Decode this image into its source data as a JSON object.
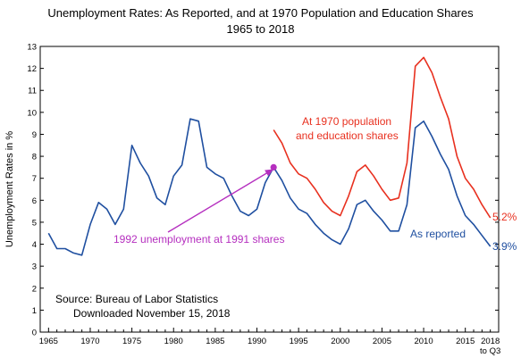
{
  "chart_data": {
    "type": "line",
    "title": "Unemployment Rates:  As Reported, and at 1970 Population and Education Shares",
    "subtitle": "1965 to 2018",
    "xlabel": "",
    "ylabel": "Unemployment Rates in %",
    "xlim": [
      1964,
      2019
    ],
    "ylim": [
      0,
      13
    ],
    "yticks": [
      0,
      1,
      2,
      3,
      4,
      5,
      6,
      7,
      8,
      9,
      10,
      11,
      12,
      13
    ],
    "xticks": [
      1965,
      1970,
      1975,
      1980,
      1985,
      1990,
      1995,
      2000,
      2005,
      2010,
      2015,
      2018
    ],
    "xtick_labels": [
      "1965",
      "1970",
      "1975",
      "1980",
      "1985",
      "1990",
      "1995",
      "2000",
      "2005",
      "2010",
      "2015",
      "2018"
    ],
    "xtick_sublabel": "to Q3",
    "grid": false,
    "series": [
      {
        "name": "As reported",
        "color": "#1f4fa0",
        "x": [
          1965,
          1966,
          1967,
          1968,
          1969,
          1970,
          1971,
          1972,
          1973,
          1974,
          1975,
          1976,
          1977,
          1978,
          1979,
          1980,
          1981,
          1982,
          1983,
          1984,
          1985,
          1986,
          1987,
          1988,
          1989,
          1990,
          1991,
          1992,
          1993,
          1994,
          1995,
          1996,
          1997,
          1998,
          1999,
          2000,
          2001,
          2002,
          2003,
          2004,
          2005,
          2006,
          2007,
          2008,
          2009,
          2010,
          2011,
          2012,
          2013,
          2014,
          2015,
          2016,
          2017,
          2018
        ],
        "y": [
          4.5,
          3.8,
          3.8,
          3.6,
          3.5,
          4.9,
          5.9,
          5.6,
          4.9,
          5.6,
          8.5,
          7.7,
          7.1,
          6.1,
          5.8,
          7.1,
          7.6,
          9.7,
          9.6,
          7.5,
          7.2,
          7.0,
          6.2,
          5.5,
          5.3,
          5.6,
          6.8,
          7.5,
          6.9,
          6.1,
          5.6,
          5.4,
          4.9,
          4.5,
          4.2,
          4.0,
          4.7,
          5.8,
          6.0,
          5.5,
          5.1,
          4.6,
          4.6,
          5.8,
          9.3,
          9.6,
          8.9,
          8.1,
          7.4,
          6.2,
          5.3,
          4.9,
          4.4,
          3.9
        ]
      },
      {
        "name": "At 1970 population and education shares",
        "color": "#e8301f",
        "x": [
          1992,
          1993,
          1994,
          1995,
          1996,
          1997,
          1998,
          1999,
          2000,
          2001,
          2002,
          2003,
          2004,
          2005,
          2006,
          2007,
          2008,
          2009,
          2010,
          2011,
          2012,
          2013,
          2014,
          2015,
          2016,
          2017,
          2018
        ],
        "y": [
          9.2,
          8.6,
          7.7,
          7.2,
          7.0,
          6.5,
          5.9,
          5.5,
          5.3,
          6.2,
          7.3,
          7.6,
          7.1,
          6.5,
          6.0,
          6.1,
          7.7,
          12.1,
          12.5,
          11.8,
          10.7,
          9.7,
          8.0,
          7.0,
          6.5,
          5.8,
          5.2
        ]
      }
    ],
    "point": {
      "x": 1992,
      "y": 7.5,
      "color": "#b52fbf"
    },
    "labels": {
      "red_line_1": "At 1970 population",
      "red_line_2": "and education shares",
      "red_end": "5.2%",
      "blue_label": "As reported",
      "blue_end": "3.9%",
      "purple": "1992 unemployment at 1991 shares",
      "source_1": "Source:  Bureau of Labor Statistics",
      "source_2": "Downloaded November 15, 2018"
    }
  }
}
